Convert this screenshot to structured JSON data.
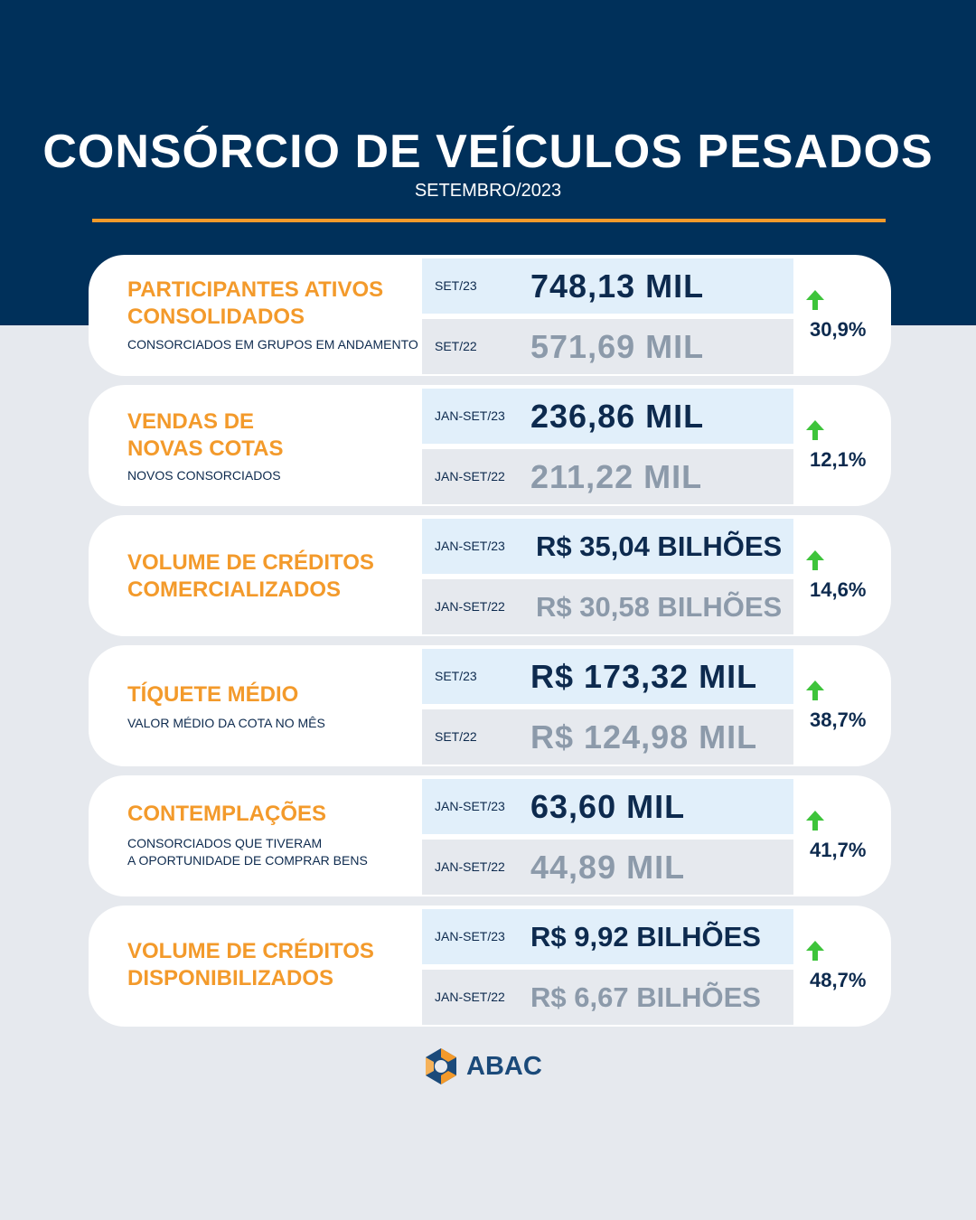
{
  "header": {
    "title": "CONSÓRCIO DE VEÍCULOS PESADOS",
    "subtitle": "SETEMBRO/2023"
  },
  "colors": {
    "navy": "#00305a",
    "orange": "#f39a2b",
    "green_arrow": "#3ec43b",
    "value_dark": "#0d2a4e",
    "value_muted": "#8c9aaa"
  },
  "cards": [
    {
      "title": "PARTICIPANTES ATIVOS\nCONSOLIDADOS",
      "description": "CONSORCIADOS EM GRUPOS EM ANDAMENTO",
      "current": {
        "label": "SET/23",
        "value": "748,13 MIL"
      },
      "previous": {
        "label": "SET/22",
        "value": "571,69 MIL"
      },
      "change": "30,9%",
      "trend_icon": "arrow-up-icon"
    },
    {
      "title": "VENDAS DE\nNOVAS COTAS",
      "description": "NOVOS CONSORCIADOS",
      "current": {
        "label": "JAN-SET/23",
        "value": "236,86 MIL"
      },
      "previous": {
        "label": "JAN-SET/22",
        "value": "211,22 MIL"
      },
      "change": "12,1%",
      "trend_icon": "arrow-up-icon"
    },
    {
      "title": "VOLUME DE CRÉDITOS\nCOMERCIALIZADOS",
      "description": "",
      "current": {
        "label": "JAN-SET/23",
        "value": "R$ 35,04 BILHÕES"
      },
      "previous": {
        "label": "JAN-SET/22",
        "value": "R$ 30,58 BILHÕES"
      },
      "change": "14,6%",
      "trend_icon": "arrow-up-icon"
    },
    {
      "title": "TÍQUETE MÉDIO",
      "description": "VALOR MÉDIO DA COTA NO MÊS",
      "current": {
        "label": "SET/23",
        "value": "R$ 173,32 MIL"
      },
      "previous": {
        "label": "SET/22",
        "value": "R$ 124,98 MIL"
      },
      "change": "38,7%",
      "trend_icon": "arrow-up-icon"
    },
    {
      "title": "CONTEMPLAÇÕES",
      "description": "CONSORCIADOS QUE TIVERAM\nA OPORTUNIDADE DE COMPRAR BENS",
      "current": {
        "label": "JAN-SET/23",
        "value": "63,60 MIL"
      },
      "previous": {
        "label": "JAN-SET/22",
        "value": "44,89 MIL"
      },
      "change": "41,7%",
      "trend_icon": "arrow-up-icon"
    },
    {
      "title": "VOLUME DE CRÉDITOS\nDISPONIBILIZADOS",
      "description": "",
      "current": {
        "label": "JAN-SET/23",
        "value": "R$ 9,92 BILHÕES"
      },
      "previous": {
        "label": "JAN-SET/22",
        "value": "R$ 6,67 BILHÕES"
      },
      "change": "48,7%",
      "trend_icon": "arrow-up-icon"
    }
  ],
  "footer": {
    "logo_text": "ABAC",
    "logo_icon": "abac-logo-icon"
  }
}
